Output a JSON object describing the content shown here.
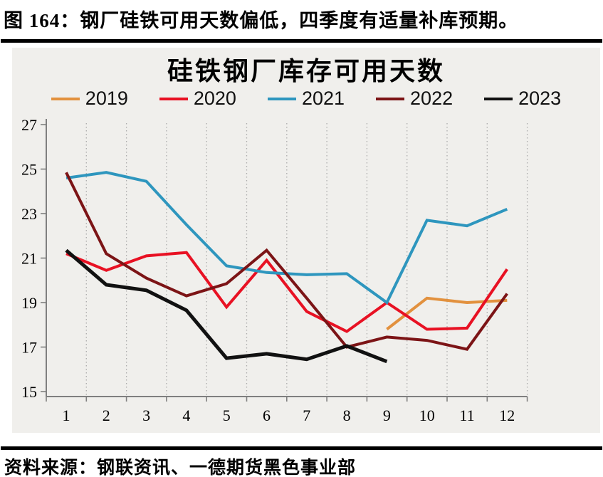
{
  "header": {
    "title": "图 164：钢厂硅铁可用天数偏低，四季度有适量补库预期。"
  },
  "footer": {
    "source": "资料来源：钢联资讯、一德期货黑色事业部"
  },
  "chart_data": {
    "type": "line",
    "title": "硅铁钢厂库存可用天数",
    "x": [
      1,
      2,
      3,
      4,
      5,
      6,
      7,
      8,
      9,
      10,
      11,
      12
    ],
    "xlabel": "",
    "ylabel": "",
    "ylim": [
      15,
      27
    ],
    "yticks": [
      15,
      17,
      19,
      21,
      23,
      25,
      27
    ],
    "grid": "vertical-dotted",
    "legend_position": "top",
    "panel_background": "#F0EFEC",
    "gridline_color": "#ABABAB",
    "axis_color": "#7F7F7F",
    "series": [
      {
        "name": "2019",
        "color": "#E2913E",
        "values": [
          null,
          null,
          null,
          null,
          null,
          null,
          null,
          null,
          17.8,
          19.2,
          19.0,
          19.1
        ]
      },
      {
        "name": "2020",
        "color": "#E81123",
        "values": [
          21.2,
          20.45,
          21.1,
          21.25,
          18.8,
          20.9,
          18.6,
          17.7,
          19.0,
          17.8,
          17.85,
          20.5
        ]
      },
      {
        "name": "2021",
        "color": "#2E96BE",
        "values": [
          24.6,
          24.85,
          24.45,
          22.5,
          20.65,
          20.35,
          20.25,
          20.3,
          19.0,
          22.7,
          22.45,
          23.2
        ]
      },
      {
        "name": "2022",
        "color": "#7C1416",
        "values": [
          24.85,
          21.2,
          20.1,
          19.3,
          19.85,
          21.35,
          19.2,
          17.0,
          17.45,
          17.3,
          16.9,
          19.4
        ]
      },
      {
        "name": "2023",
        "color": "#111111",
        "values": [
          21.35,
          19.8,
          19.55,
          18.65,
          16.5,
          16.7,
          16.45,
          17.05,
          16.35,
          null,
          null,
          null
        ]
      }
    ]
  }
}
